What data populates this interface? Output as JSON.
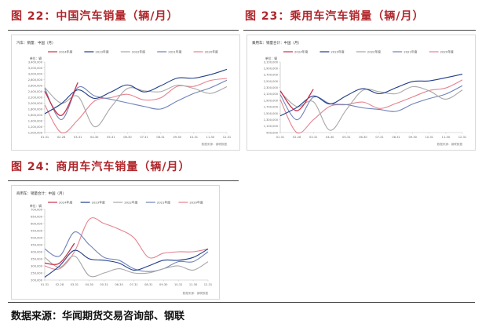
{
  "figures": [
    {
      "title": "图 22：中国汽车销量（辆/月）"
    },
    {
      "title": "图 23：乘用车汽车销量（辆/月）"
    },
    {
      "title": "图 24：商用车汽车销量（辆/月）"
    }
  ],
  "source": "数据来源：华闻期货交易咨询部、钢联",
  "chart_data": [
    {
      "type": "line",
      "title": "汽车：销量：中国（月）",
      "ylabel": "单位：辆",
      "ylim": [
        1000000,
        3400000
      ],
      "yticks": [
        1000000,
        1200000,
        1400000,
        1600000,
        1800000,
        2000000,
        2200000,
        2400000,
        2600000,
        2800000,
        3000000,
        3200000,
        3400000
      ],
      "ytick_labels": [
        "1,000,000",
        "1,200,000",
        "1,400,000",
        "1,600,000",
        "1,800,000",
        "2,000,000",
        "2,200,000",
        "2,400,000",
        "2,600,000",
        "2,800,000",
        "3,000,000",
        "3,200,000",
        "3,400,000"
      ],
      "categories": [
        "01-31",
        "02-28",
        "03-31",
        "04-30",
        "05-31",
        "06-30",
        "07-31",
        "08-31",
        "09-30",
        "10-31",
        "11-30",
        "12-31"
      ],
      "source_note": "数据来源：钢联数据",
      "series": [
        {
          "name": "2024年度",
          "color": "#c9304a",
          "values": [
            2400000,
            1580000,
            2700000,
            null,
            null,
            null,
            null,
            null,
            null,
            null,
            null,
            null
          ]
        },
        {
          "name": "2023年度",
          "color": "#1f3c88",
          "values": [
            1640000,
            1980000,
            2450000,
            2160000,
            2380000,
            2620000,
            2380000,
            2590000,
            2850000,
            2850000,
            2970000,
            3150000
          ]
        },
        {
          "name": "2022年度",
          "color": "#a7a7a7",
          "values": [
            2530000,
            2000000,
            2230000,
            1200000,
            1860000,
            2500000,
            2420000,
            2390000,
            2610000,
            2500000,
            2330000,
            2560000
          ]
        },
        {
          "name": "2021年度",
          "color": "#6e82b8",
          "values": [
            2500000,
            1440000,
            2530000,
            2250000,
            2130000,
            2010000,
            1890000,
            1800000,
            2070000,
            2330000,
            2520000,
            2780000
          ]
        },
        {
          "name": "2020年度",
          "color": "#e4828e",
          "values": [
            1940000,
            310000,
            1430000,
            2070000,
            2190000,
            2300000,
            2110000,
            2180000,
            2570000,
            2570000,
            2770000,
            2840000
          ]
        }
      ]
    },
    {
      "type": "line",
      "title": "乘用车：销量合计：中国（月）",
      "ylabel": "单位：辆",
      "ylim": [
        900000,
        3100000
      ],
      "yticks": [
        900000,
        1100000,
        1300000,
        1500000,
        1700000,
        1900000,
        2100000,
        2300000,
        2500000,
        2700000,
        2900000,
        3100000
      ],
      "ytick_labels": [
        "900,000",
        "1,100,000",
        "1,300,000",
        "1,500,000",
        "1,700,000",
        "1,900,000",
        "2,100,000",
        "2,300,000",
        "2,500,000",
        "2,700,000",
        "2,900,000",
        "3,100,000"
      ],
      "categories": [
        "01-31",
        "02-28",
        "03-31",
        "04-30",
        "05-31",
        "06-30",
        "07-31",
        "08-31",
        "09-30",
        "10-31",
        "11-30",
        "12-31"
      ],
      "source_note": "数据来源：钢联数据",
      "series": [
        {
          "name": "2024年度",
          "color": "#c9304a",
          "values": [
            2200000,
            1580000,
            2250000,
            null,
            null,
            null,
            null,
            null,
            null,
            null,
            null,
            null
          ]
        },
        {
          "name": "2023年度",
          "color": "#1f3c88",
          "values": [
            1420000,
            1680000,
            2040000,
            1790000,
            2050000,
            2270000,
            2110000,
            2300000,
            2490000,
            2510000,
            2610000,
            2720000
          ]
        },
        {
          "name": "2022年度",
          "color": "#a7a7a7",
          "values": [
            2170000,
            1710000,
            1860000,
            970000,
            1620000,
            2220000,
            2170000,
            2110000,
            2330000,
            2200000,
            1940000,
            2230000
          ]
        },
        {
          "name": "2021年度",
          "color": "#6e82b8",
          "values": [
            2080000,
            1300000,
            2000000,
            1800000,
            1770000,
            1670000,
            1620000,
            1560000,
            1790000,
            1960000,
            2100000,
            2360000
          ]
        },
        {
          "name": "2020年度",
          "color": "#e4828e",
          "values": [
            1930000,
            900000,
            1300000,
            1720000,
            1770000,
            1850000,
            1650000,
            1810000,
            2010000,
            2210000,
            2290000,
            2540000
          ]
        }
      ]
    },
    {
      "type": "line",
      "title": "商用车：销量合计：中国（月）",
      "ylabel": "单位：辆",
      "ylim": [
        200000,
        700000
      ],
      "yticks": [
        200000,
        250000,
        300000,
        350000,
        400000,
        450000,
        500000,
        550000,
        600000,
        650000,
        700000
      ],
      "ytick_labels": [
        "200,000",
        "250,000",
        "300,000",
        "350,000",
        "400,000",
        "450,000",
        "500,000",
        "550,000",
        "600,000",
        "650,000",
        "700,000"
      ],
      "categories": [
        "01-31",
        "02-28",
        "03-31",
        "04-30",
        "05-31",
        "06-30",
        "07-31",
        "08-31",
        "09-30",
        "10-31",
        "11-30",
        "12-31"
      ],
      "source_note": "数据来源：钢联数据",
      "series": [
        {
          "name": "2024年度",
          "color": "#c9304a",
          "values": [
            320000,
            320000,
            460000,
            null,
            null,
            null,
            null,
            null,
            null,
            null,
            null,
            null
          ]
        },
        {
          "name": "2023年度",
          "color": "#1f3c88",
          "values": [
            220000,
            300000,
            410000,
            350000,
            340000,
            320000,
            270000,
            300000,
            340000,
            340000,
            360000,
            420000
          ]
        },
        {
          "name": "2022年度",
          "color": "#a7a7a7",
          "values": [
            360000,
            290000,
            370000,
            230000,
            250000,
            280000,
            250000,
            250000,
            280000,
            300000,
            270000,
            330000
          ]
        },
        {
          "name": "2021年度",
          "color": "#6e82b8",
          "values": [
            420000,
            370000,
            540000,
            450000,
            360000,
            340000,
            280000,
            260000,
            280000,
            330000,
            330000,
            400000
          ]
        },
        {
          "name": "2020年度",
          "color": "#e4828e",
          "values": [
            300000,
            280000,
            400000,
            630000,
            600000,
            560000,
            500000,
            360000,
            390000,
            400000,
            400000,
            420000
          ]
        }
      ]
    }
  ]
}
